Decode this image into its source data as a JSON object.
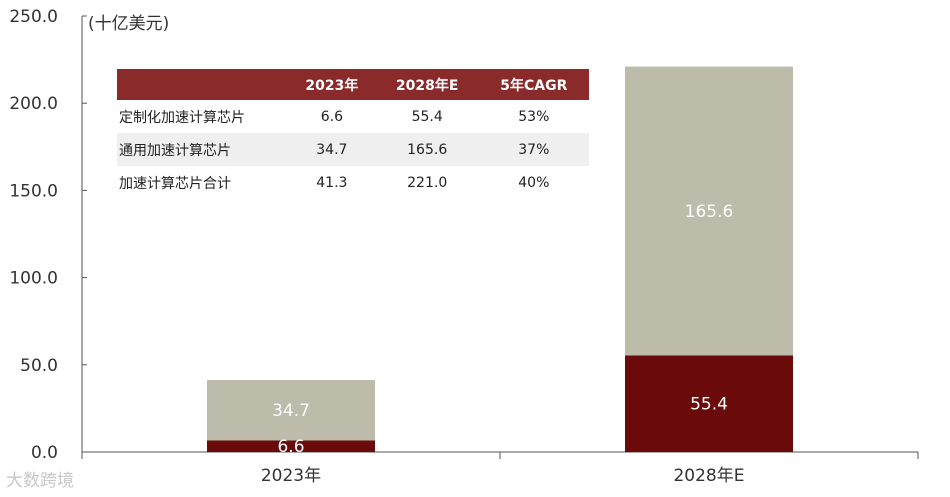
{
  "chart_data": {
    "type": "bar",
    "stacked": true,
    "unit_label": "(十亿美元)",
    "categories": [
      "2023年",
      "2028年E"
    ],
    "series": [
      {
        "name": "定制化加速计算芯片",
        "values": [
          6.6,
          55.4
        ],
        "color": "#6b0a0a"
      },
      {
        "name": "通用加速计算芯片",
        "values": [
          34.7,
          165.6
        ],
        "color": "#bdbbaa"
      }
    ],
    "ylim": [
      0,
      250
    ],
    "yticks": [
      "0.0",
      "50.0",
      "100.0",
      "150.0",
      "200.0",
      "250.0"
    ],
    "grid": false,
    "legend": "none"
  },
  "table": {
    "header": [
      "",
      "2023年",
      "2028年E",
      "5年CAGR"
    ],
    "rows": [
      [
        "定制化加速计算芯片",
        "6.6",
        "55.4",
        "53%"
      ],
      [
        "通用加速计算芯片",
        "34.7",
        "165.6",
        "37%"
      ],
      [
        "加速计算芯片合计",
        "41.3",
        "221.0",
        "40%"
      ]
    ]
  },
  "watermark": "大数跨境"
}
